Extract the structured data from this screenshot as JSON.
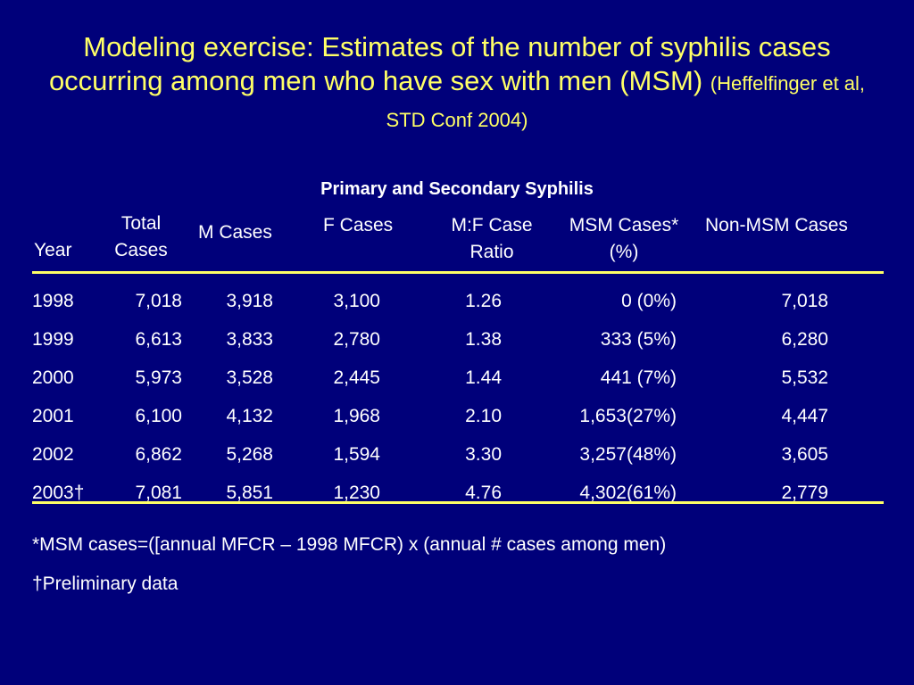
{
  "slide": {
    "title_main": "Modeling exercise:  Estimates of the number of syphilis cases occurring among men who have sex with men (MSM)",
    "title_citation": "(Heffelfinger et al, STD Conf 2004)",
    "table_title": "Primary and Secondary Syphilis",
    "headers": {
      "year": "Year",
      "total_l1": "Total",
      "total_l2": "Cases",
      "m": "M Cases",
      "f": "F Cases",
      "ratio_l1": "M:F Case",
      "ratio_l2": "Ratio",
      "msm_l1": "MSM Cases*",
      "msm_l2": "(%)",
      "nonmsm": "Non-MSM Cases"
    },
    "rows": [
      {
        "year": "1998",
        "total": "7,018",
        "m": "3,918",
        "f": "3,100",
        "ratio": "1.26",
        "msm": "0  (0%)",
        "nonmsm": "7,018"
      },
      {
        "year": "1999",
        "total": "6,613",
        "m": "3,833",
        "f": "2,780",
        "ratio": "1.38",
        "msm": "333  (5%)",
        "nonmsm": "6,280"
      },
      {
        "year": "2000",
        "total": "5,973",
        "m": "3,528",
        "f": "2,445",
        "ratio": "1.44",
        "msm": "441  (7%)",
        "nonmsm": "5,532"
      },
      {
        "year": "2001",
        "total": "6,100",
        "m": "4,132",
        "f": "1,968",
        "ratio": "2.10",
        "msm": "1,653(27%)",
        "nonmsm": "4,447"
      },
      {
        "year": "2002",
        "total": "6,862",
        "m": "5,268",
        "f": "1,594",
        "ratio": "3.30",
        "msm": "3,257(48%)",
        "nonmsm": "3,605"
      },
      {
        "year": "2003†",
        "total": "7,081",
        "m": "5,851",
        "f": "1,230",
        "ratio": "4.76",
        "msm": "4,302(61%)",
        "nonmsm": "2,779"
      }
    ],
    "footnotes": {
      "msm_def": "*MSM cases=([annual MFCR – 1998 MFCR) x (annual # cases among men)",
      "prelim": "†Preliminary data"
    },
    "colors": {
      "background": "#00007a",
      "title": "#ffff66",
      "text": "#ffffff",
      "rule": "#ffff66"
    }
  }
}
